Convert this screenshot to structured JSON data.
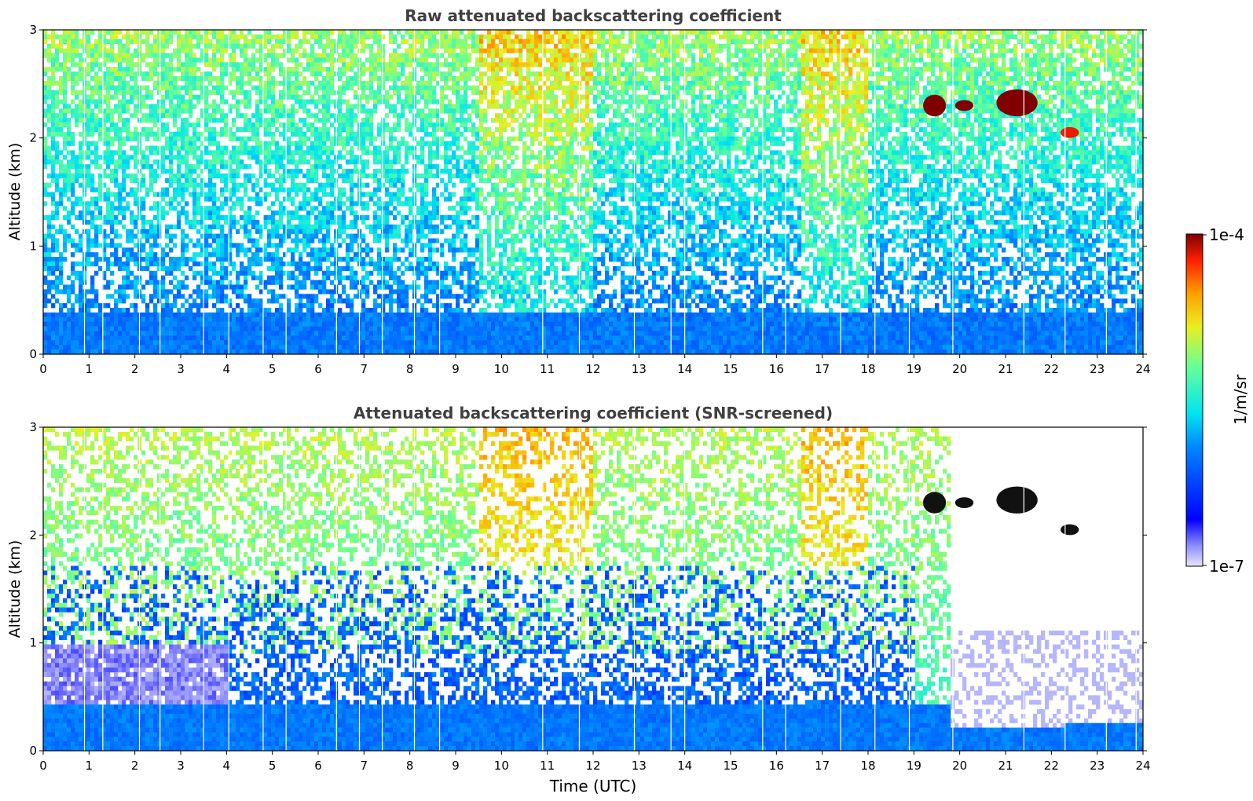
{
  "figure": {
    "colorbar": {
      "label": "1/m/sr",
      "max_label": "1e-4",
      "min_label": "1e-7",
      "scale": "log",
      "range": [
        1e-07,
        0.0001
      ],
      "colormap": "jet (low end faded to pale lavender)"
    }
  },
  "chart_data": [
    {
      "type": "heatmap",
      "title": "Raw attenuated backscattering coefficient",
      "xlabel": "",
      "ylabel": "Altitude (km)",
      "x_ticks": [
        "0",
        "1",
        "2",
        "3",
        "4",
        "5",
        "6",
        "7",
        "8",
        "9",
        "10",
        "11",
        "12",
        "13",
        "14",
        "15",
        "16",
        "17",
        "18",
        "19",
        "20",
        "21",
        "22",
        "23",
        "24"
      ],
      "y_ticks": [
        "0",
        "1",
        "2",
        "3"
      ],
      "xlim": [
        0,
        24
      ],
      "ylim": [
        0,
        3
      ],
      "grid": false,
      "features": [
        {
          "name": "boundary layer",
          "x_range": [
            0,
            24
          ],
          "altitude_top_km": 0.4,
          "log10_value": -6.0
        },
        {
          "name": "cloud",
          "x_range": [
            19.2,
            19.7
          ],
          "altitude_range_km": [
            2.2,
            2.4
          ],
          "log10_value": -4.0
        },
        {
          "name": "cloud",
          "x_range": [
            19.9,
            20.3
          ],
          "altitude_range_km": [
            2.25,
            2.35
          ],
          "log10_value": -4.0
        },
        {
          "name": "cloud",
          "x_range": [
            20.8,
            21.7
          ],
          "altitude_range_km": [
            2.2,
            2.45
          ],
          "log10_value": -4.0
        },
        {
          "name": "cloud",
          "x_range": [
            22.2,
            22.6
          ],
          "altitude_range_km": [
            2.0,
            2.1
          ],
          "log10_value": -4.2
        },
        {
          "name": "elevated noise",
          "x_range": [
            9.5,
            12.0
          ],
          "altitude_range_km": [
            1.5,
            3.0
          ],
          "log10_value": -4.9
        }
      ]
    },
    {
      "type": "heatmap",
      "title": "Attenuated backscattering coefficient (SNR-screened)",
      "xlabel": "Time (UTC)",
      "ylabel": "Altitude (km)",
      "x_ticks": [
        "0",
        "1",
        "2",
        "3",
        "4",
        "5",
        "6",
        "7",
        "8",
        "9",
        "10",
        "11",
        "12",
        "13",
        "14",
        "15",
        "16",
        "17",
        "18",
        "19",
        "20",
        "21",
        "22",
        "23",
        "24"
      ],
      "y_ticks": [
        "0",
        "1",
        "2",
        "3"
      ],
      "xlim": [
        0,
        24
      ],
      "ylim": [
        0,
        3
      ],
      "grid": false,
      "features": [
        {
          "name": "boundary layer",
          "x_range": [
            0,
            24
          ],
          "altitude_top_km": 0.45,
          "log10_value": -6.0
        },
        {
          "name": "low-signal layer",
          "x_range": [
            0,
            4
          ],
          "altitude_range_km": [
            0.45,
            1.0
          ],
          "log10_value": -6.8
        },
        {
          "name": "aerosol blobs",
          "x_range": [
            0,
            19
          ],
          "altitude_range_km": [
            0.4,
            1.7
          ],
          "log10_value": -6.2
        },
        {
          "name": "cloud (masked)",
          "x_range": [
            19.2,
            19.7
          ],
          "altitude_range_km": [
            2.2,
            2.4
          ]
        },
        {
          "name": "cloud (masked)",
          "x_range": [
            19.9,
            20.3
          ],
          "altitude_range_km": [
            2.25,
            2.35
          ]
        },
        {
          "name": "cloud (masked)",
          "x_range": [
            20.8,
            21.7
          ],
          "altitude_range_km": [
            2.2,
            2.45
          ]
        },
        {
          "name": "cloud (masked)",
          "x_range": [
            22.2,
            22.6
          ],
          "altitude_range_km": [
            2.0,
            2.1
          ]
        }
      ]
    }
  ]
}
